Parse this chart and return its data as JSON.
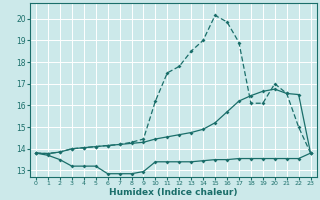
{
  "xlabel": "Humidex (Indice chaleur)",
  "bg_color": "#cce9ea",
  "grid_color": "#ffffff",
  "line_color": "#1a6e6a",
  "x_ticks": [
    0,
    1,
    2,
    3,
    4,
    5,
    6,
    7,
    8,
    9,
    10,
    11,
    12,
    13,
    14,
    15,
    16,
    17,
    18,
    19,
    20,
    21,
    22,
    23
  ],
  "ylim": [
    12.7,
    20.7
  ],
  "yticks": [
    13,
    14,
    15,
    16,
    17,
    18,
    19,
    20
  ],
  "curve1_x": [
    0,
    1,
    2,
    3,
    4,
    5,
    6,
    7,
    8,
    9,
    10,
    11,
    12,
    13,
    14,
    15,
    16,
    17,
    18,
    19,
    20,
    21,
    22,
    23
  ],
  "curve1_y": [
    13.8,
    13.7,
    13.5,
    13.2,
    13.2,
    13.2,
    12.85,
    12.85,
    12.85,
    12.95,
    13.4,
    13.4,
    13.4,
    13.4,
    13.45,
    13.5,
    13.5,
    13.55,
    13.55,
    13.55,
    13.55,
    13.55,
    13.55,
    13.8
  ],
  "curve2_x": [
    0,
    1,
    2,
    3,
    4,
    5,
    6,
    7,
    8,
    9,
    10,
    11,
    12,
    13,
    14,
    15,
    16,
    17,
    18,
    19,
    20,
    21,
    22,
    23
  ],
  "curve2_y": [
    13.8,
    13.78,
    13.85,
    14.0,
    14.05,
    14.1,
    14.15,
    14.2,
    14.25,
    14.3,
    14.45,
    14.55,
    14.65,
    14.75,
    14.9,
    15.2,
    15.7,
    16.2,
    16.45,
    16.65,
    16.75,
    16.55,
    16.5,
    13.8
  ],
  "curve3_x": [
    0,
    1,
    2,
    3,
    4,
    5,
    6,
    7,
    8,
    9,
    10,
    11,
    12,
    13,
    14,
    15,
    16,
    17,
    18,
    19,
    20,
    21,
    22,
    23
  ],
  "curve3_y": [
    13.8,
    13.78,
    13.85,
    14.0,
    14.05,
    14.1,
    14.15,
    14.2,
    14.3,
    14.45,
    16.2,
    17.5,
    17.8,
    18.5,
    19.0,
    20.15,
    19.85,
    18.9,
    16.1,
    16.1,
    17.0,
    16.55,
    15.0,
    13.8
  ],
  "marker_size": 2.0,
  "linewidth": 0.9
}
